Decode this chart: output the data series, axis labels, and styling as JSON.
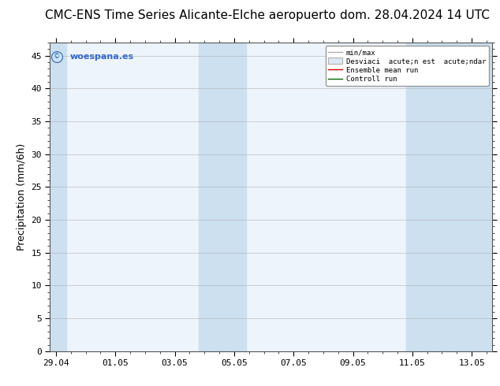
{
  "title_left": "CMC-ENS Time Series Alicante-Elche aeropuerto",
  "title_right": "dom. 28.04.2024 14 UTC",
  "ylabel": "Precipitation (mm/6h)",
  "bg_color": "#ffffff",
  "plot_bg_color": "#eef4fb",
  "ylim": [
    0,
    47
  ],
  "yticks": [
    0,
    5,
    10,
    15,
    20,
    25,
    30,
    35,
    40,
    45
  ],
  "xticklabels": [
    "29.04",
    "01.05",
    "03.05",
    "05.05",
    "07.05",
    "09.05",
    "11.05",
    "13.05"
  ],
  "shade_color": "#cce0f0",
  "watermark_text": "© woespana.es",
  "legend_minmax": "min/max",
  "legend_std": "Desviaci  acute;n est  acute;ndar",
  "legend_ens": "Ensemble mean run",
  "legend_ctrl": "Controll run",
  "title_fontsize": 11,
  "tick_fontsize": 8,
  "ylabel_fontsize": 9
}
